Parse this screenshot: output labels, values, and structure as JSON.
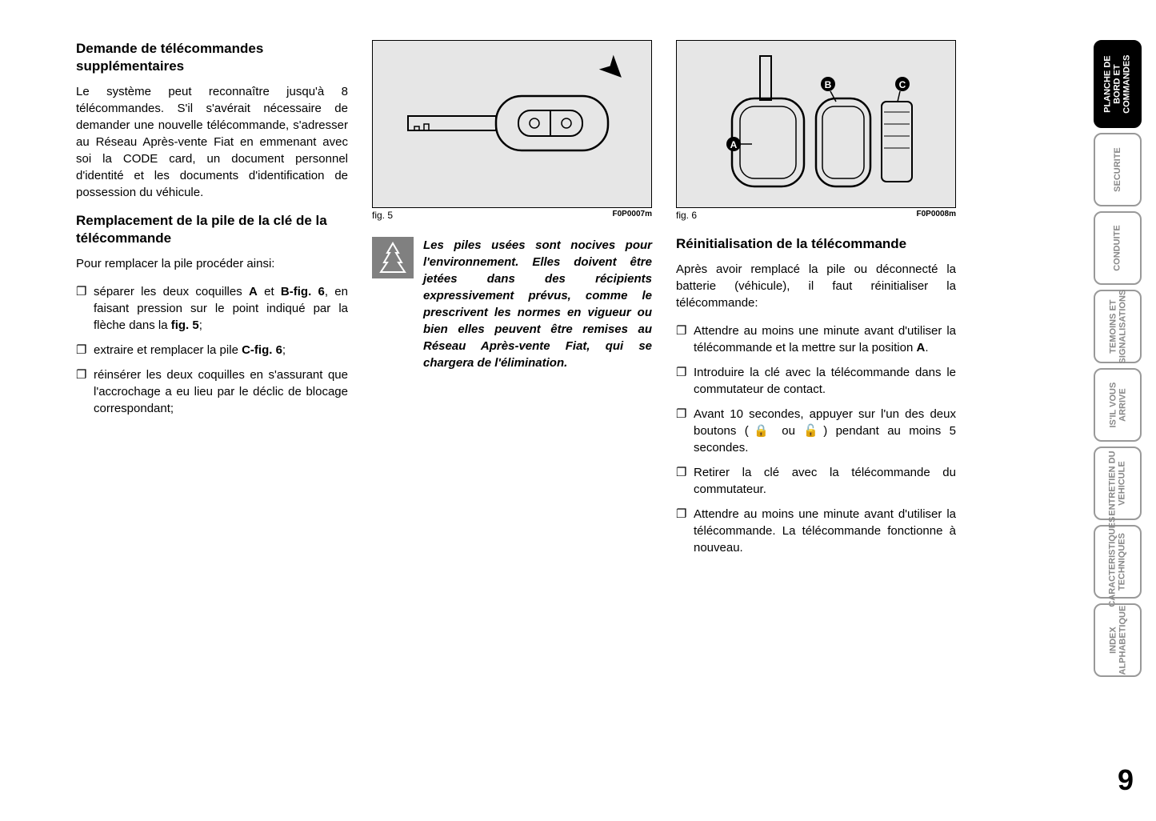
{
  "col1": {
    "heading1": "Demande de télécommandes supplémentaires",
    "para1": "Le système peut reconnaître jusqu'à 8 télécommandes. S'il s'avérait nécessaire de demander une nouvelle télécommande, s'adresser au Réseau Après-vente Fiat en emmenant avec soi la CODE card, un document personnel d'identité et les documents d'identification de possession du véhicule.",
    "heading2": "Remplacement de la pile de la clé de la télécommande",
    "para2": "Pour remplacer la pile procéder ainsi:",
    "li1_a": "séparer les deux coquilles ",
    "li1_b": "A",
    "li1_c": " et ",
    "li1_d": "B-fig. 6",
    "li1_e": ", en faisant pression sur le point indiqué par la flèche dans la ",
    "li1_f": "fig. 5",
    "li1_g": ";",
    "li2_a": "extraire et remplacer la pile ",
    "li2_b": "C-fig. 6",
    "li2_c": ";",
    "li3": "réinsérer les deux coquilles en s'assurant que l'accrochage a eu lieu par le déclic de blocage correspondant;"
  },
  "col2": {
    "fig_label": "fig. 5",
    "fig_code": "F0P0007m",
    "warning": "Les piles usées sont nocives pour l'environnement. Elles doivent être jetées dans des récipients expressivement prévus, comme le prescrivent les normes en vigueur ou bien elles peuvent être remises au Réseau Après-vente Fiat, qui se chargera de l'élimination."
  },
  "col3": {
    "fig_label": "fig. 6",
    "fig_code": "F0P0008m",
    "heading": "Réinitialisation de la télécommande",
    "para": "Après avoir remplacé la pile ou déconnecté la batterie (véhicule), il faut réinitialiser la télécommande:",
    "li1_a": "Attendre au moins une minute avant d'utiliser la télécommande et la mettre sur la position ",
    "li1_b": "A",
    "li1_c": ".",
    "li2": "Introduire la clé avec la télécommande dans le commutateur de contact.",
    "li3": "Avant 10 secondes, appuyer sur l'un des deux boutons (🔒 ou 🔓) pendant au moins 5 secondes.",
    "li4": "Retirer la clé avec la télécommande du commutateur.",
    "li5": "Attendre au moins une minute avant d'utiliser la télécommande. La télécommande fonctionne à nouveau."
  },
  "tabs": [
    "PLANCHE DE\nBORD ET\nCOMMANDES",
    "SECURITE",
    "CONDUITE",
    "TEMOINS ET\nSIGNALISATIONS",
    "IS'IL VOUS\nARRIVE",
    "ENTRETIEN DU\nVEHICULE",
    "CARACTERISTIQUES\nTECHNIQUES",
    "INDEX\nALPHABETIQUE"
  ],
  "page_number": "9",
  "markers": {
    "A": "A",
    "B": "B",
    "C": "C"
  }
}
